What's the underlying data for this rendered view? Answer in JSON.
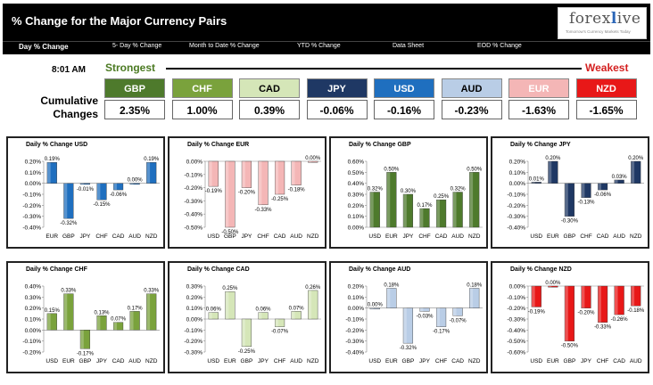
{
  "header": {
    "title": "% Change for the Major Currency Pairs",
    "logo": "forexlive",
    "logo_tagline": "Tomorrow's Currency Markets Today"
  },
  "nav": [
    {
      "label": "Day % Change",
      "active": true
    },
    {
      "label": "5- Day % Change",
      "active": false
    },
    {
      "label": "Month to Date % Change",
      "active": false
    },
    {
      "label": "YTD % Change",
      "active": false
    },
    {
      "label": "Data Sheet",
      "active": false
    },
    {
      "label": "EOD % Change",
      "active": false
    }
  ],
  "time": "8:01 AM",
  "strongest_label": "Strongest",
  "weakest_label": "Weakest",
  "cumulative_label_line1": "Cumulative",
  "cumulative_label_line2": "Changes",
  "tiles": [
    {
      "name": "GBP",
      "value": "2.35%",
      "bg": "#4e7a2c",
      "fg": "#ffffff"
    },
    {
      "name": "CHF",
      "value": "1.00%",
      "bg": "#7aa23c",
      "fg": "#ffffff"
    },
    {
      "name": "CAD",
      "value": "0.39%",
      "bg": "#d5e6b8",
      "fg": "#000000"
    },
    {
      "name": "JPY",
      "value": "-0.06%",
      "bg": "#1f3864",
      "fg": "#ffffff"
    },
    {
      "name": "USD",
      "value": "-0.16%",
      "bg": "#1f6fbf",
      "fg": "#ffffff"
    },
    {
      "name": "AUD",
      "value": "-0.23%",
      "bg": "#b9cde6",
      "fg": "#000000"
    },
    {
      "name": "EUR",
      "value": "-1.63%",
      "bg": "#f4b6b6",
      "fg": "#ffffff"
    },
    {
      "name": "NZD",
      "value": "-1.65%",
      "bg": "#e81818",
      "fg": "#ffffff"
    }
  ],
  "chart_data": [
    {
      "type": "bar",
      "title": "Daily % Change USD",
      "color": "#1f6fbf",
      "categories": [
        "EUR",
        "GBP",
        "JPY",
        "CHF",
        "CAD",
        "AUD",
        "NZD"
      ],
      "values": [
        0.19,
        -0.32,
        -0.01,
        -0.15,
        -0.06,
        0.0,
        0.19
      ],
      "labels": [
        "0.19%",
        "-0.32%",
        "-0.01%",
        "-0.15%",
        "-0.06%",
        "0.00%",
        "0.19%"
      ],
      "ylim": [
        -0.4,
        0.2
      ],
      "ticks": [
        "0.20%",
        "0.10%",
        "0.00%",
        "-0.10%",
        "-0.20%",
        "-0.30%",
        "-0.40%"
      ]
    },
    {
      "type": "bar",
      "title": "Daily % Change EUR",
      "color": "#f4b6b6",
      "categories": [
        "USD",
        "GBP",
        "JPY",
        "CHF",
        "CAD",
        "AUD",
        "NZD"
      ],
      "values": [
        -0.19,
        -0.5,
        -0.2,
        -0.33,
        -0.25,
        -0.18,
        0.0
      ],
      "labels": [
        "-0.19%",
        "-0.50%",
        "-0.20%",
        "-0.33%",
        "-0.25%",
        "-0.18%",
        "0.00%"
      ],
      "ylim": [
        -0.5,
        0.0
      ],
      "ticks": [
        "0.00%",
        "-0.10%",
        "-0.20%",
        "-0.30%",
        "-0.40%",
        "-0.50%"
      ]
    },
    {
      "type": "bar",
      "title": "Daily % Change GBP",
      "color": "#4e7a2c",
      "categories": [
        "USD",
        "EUR",
        "JPY",
        "CHF",
        "CAD",
        "AUD",
        "NZD"
      ],
      "values": [
        0.32,
        0.5,
        0.3,
        0.17,
        0.25,
        0.32,
        0.5
      ],
      "labels": [
        "0.32%",
        "0.50%",
        "0.30%",
        "0.17%",
        "0.25%",
        "0.32%",
        "0.50%"
      ],
      "ylim": [
        0.0,
        0.6
      ],
      "ticks": [
        "0.60%",
        "0.50%",
        "0.40%",
        "0.30%",
        "0.20%",
        "0.10%",
        "0.00%"
      ]
    },
    {
      "type": "bar",
      "title": "Daily % Change JPY",
      "color": "#1f3864",
      "categories": [
        "USD",
        "EUR",
        "GBP",
        "CHF",
        "CAD",
        "AUD",
        "NZD"
      ],
      "values": [
        0.01,
        0.2,
        -0.3,
        -0.13,
        -0.06,
        0.03,
        0.2
      ],
      "labels": [
        "0.01%",
        "0.20%",
        "-0.30%",
        "-0.13%",
        "-0.06%",
        "0.03%",
        "0.20%"
      ],
      "ylim": [
        -0.4,
        0.2
      ],
      "ticks": [
        "0.20%",
        "0.10%",
        "0.00%",
        "-0.10%",
        "-0.20%",
        "-0.30%",
        "-0.40%"
      ]
    },
    {
      "type": "bar",
      "title": "Daily % Change CHF",
      "color": "#7aa23c",
      "categories": [
        "USD",
        "EUR",
        "GBP",
        "JPY",
        "CAD",
        "AUD",
        "NZD"
      ],
      "values": [
        0.15,
        0.33,
        -0.17,
        0.13,
        0.07,
        0.17,
        0.33
      ],
      "labels": [
        "0.15%",
        "0.33%",
        "-0.17%",
        "0.13%",
        "0.07%",
        "0.17%",
        "0.33%"
      ],
      "ylim": [
        -0.2,
        0.4
      ],
      "ticks": [
        "0.40%",
        "0.30%",
        "0.20%",
        "0.10%",
        "0.00%",
        "-0.10%",
        "-0.20%"
      ]
    },
    {
      "type": "bar",
      "title": "Daily % Change CAD",
      "color": "#d5e6b8",
      "categories": [
        "USD",
        "EUR",
        "GBP",
        "JPY",
        "CHF",
        "AUD",
        "NZD"
      ],
      "values": [
        0.06,
        0.25,
        -0.25,
        0.06,
        -0.07,
        0.07,
        0.26
      ],
      "labels": [
        "0.06%",
        "0.25%",
        "-0.25%",
        "0.06%",
        "-0.07%",
        "0.07%",
        "0.26%"
      ],
      "ylim": [
        -0.3,
        0.3
      ],
      "ticks": [
        "0.30%",
        "0.20%",
        "0.10%",
        "0.00%",
        "-0.10%",
        "-0.20%",
        "-0.30%"
      ]
    },
    {
      "type": "bar",
      "title": "Daily % Change AUD",
      "color": "#b9cde6",
      "categories": [
        "USD",
        "EUR",
        "GBP",
        "JPY",
        "CHF",
        "CAD",
        "NZD"
      ],
      "values": [
        0.0,
        0.18,
        -0.32,
        -0.03,
        -0.17,
        -0.07,
        0.18
      ],
      "labels": [
        "0.00%",
        "0.18%",
        "-0.32%",
        "-0.03%",
        "-0.17%",
        "-0.07%",
        "0.18%"
      ],
      "ylim": [
        -0.4,
        0.2
      ],
      "ticks": [
        "0.20%",
        "0.10%",
        "0.00%",
        "-0.10%",
        "-0.20%",
        "-0.30%",
        "-0.40%"
      ]
    },
    {
      "type": "bar",
      "title": "Daily % Change NZD",
      "color": "#e81818",
      "categories": [
        "USD",
        "EUR",
        "GBP",
        "JPY",
        "CHF",
        "CAD",
        "AUD"
      ],
      "values": [
        -0.19,
        0.0,
        -0.5,
        -0.2,
        -0.33,
        -0.26,
        -0.18
      ],
      "labels": [
        "-0.19%",
        "0.00%",
        "-0.50%",
        "-0.20%",
        "-0.33%",
        "-0.26%",
        "-0.18%"
      ],
      "ylim": [
        -0.6,
        0.0
      ],
      "ticks": [
        "0.00%",
        "-0.10%",
        "-0.20%",
        "-0.30%",
        "-0.40%",
        "-0.50%",
        "-0.60%"
      ]
    }
  ]
}
